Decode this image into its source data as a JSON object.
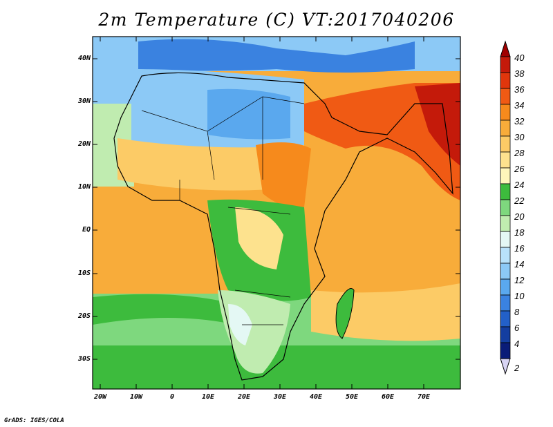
{
  "title": "2m Temperature (C) VT:2017040206",
  "credit": "GrADS: IGES/COLA",
  "lat_ticks": [
    "40N",
    "30N",
    "20N",
    "10N",
    "EQ",
    "10S",
    "20S",
    "30S"
  ],
  "lon_ticks": [
    "20W",
    "10W",
    "0",
    "10E",
    "20E",
    "30E",
    "40E",
    "50E",
    "60E",
    "70E"
  ],
  "colorbar": {
    "labels": [
      "40",
      "38",
      "36",
      "34",
      "32",
      "30",
      "28",
      "26",
      "24",
      "22",
      "20",
      "18",
      "16",
      "14",
      "12",
      "10",
      "8",
      "6",
      "4",
      "2"
    ],
    "colors": [
      "#a00000",
      "#c41a0a",
      "#e0360c",
      "#f05a14",
      "#f68a1c",
      "#f8ac3a",
      "#fccb66",
      "#fde28e",
      "#fff6bb",
      "#3dbb3d",
      "#7ed87e",
      "#c0ecb0",
      "#e4f8f4",
      "#b8e2fa",
      "#8cc9f6",
      "#5aa8ee",
      "#3a82e0",
      "#2360c8",
      "#143ea0",
      "#0a1c78"
    ],
    "under_color": "#d8d4f4"
  },
  "map": {
    "region": "Africa",
    "ocean_colors": {
      "mediterranean": "#5aa8ee",
      "n_atlantic": "#8cc9f6",
      "gulf_of_guinea": "#f8ac3a",
      "indian_ocean": "#f8ac3a",
      "s_atlantic": "#3dbb3d",
      "arabian_sea": "#f8ac3a"
    }
  }
}
